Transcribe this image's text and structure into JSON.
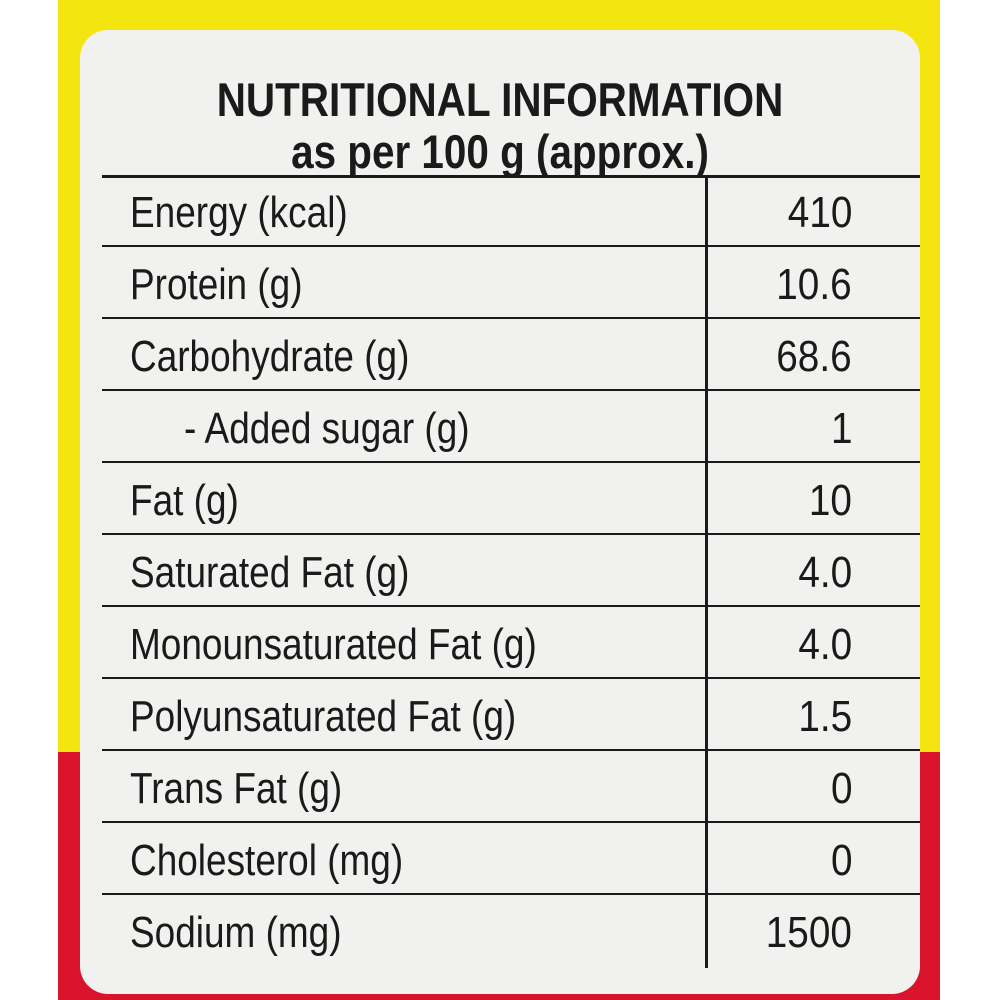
{
  "colors": {
    "top_band": "#f4e40f",
    "bottom_band": "#d9132b",
    "label_background": "#f1f1ef",
    "text": "#1a1a1a"
  },
  "label": {
    "title_line1": "NUTRITIONAL INFORMATION",
    "title_line2": "as per 100 g (approx.)",
    "rows": [
      {
        "name": "Energy (kcal)",
        "value": "410"
      },
      {
        "name": "Protein (g)",
        "value": "10.6"
      },
      {
        "name": "Carbohydrate (g)",
        "value": "68.6"
      },
      {
        "name": "- Added sugar (g)",
        "value": "1"
      },
      {
        "name": "Fat (g)",
        "value": "10"
      },
      {
        "name": "Saturated Fat (g)",
        "value": "4.0"
      },
      {
        "name": "Monounsaturated Fat (g)",
        "value": "4.0"
      },
      {
        "name": "Polyunsaturated Fat (g)",
        "value": "1.5"
      },
      {
        "name": "Trans Fat (g)",
        "value": "0"
      },
      {
        "name": "Cholesterol (mg)",
        "value": "0"
      },
      {
        "name": "Sodium (mg)",
        "value": "1500"
      }
    ]
  }
}
